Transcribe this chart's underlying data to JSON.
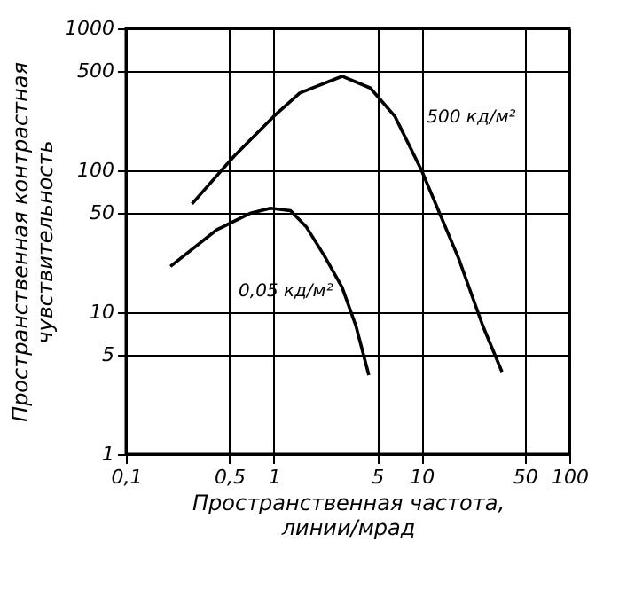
{
  "chart_data": {
    "type": "line",
    "xlabel": "Пространственная частота,\nлинии/мрад",
    "ylabel": "Пространственная контрастная\nчувствительность",
    "log": "xy",
    "grid": true,
    "marker": "none",
    "line_style": "solid",
    "xlim": [
      0.1,
      100
    ],
    "xticks": [
      {
        "value": 0.1,
        "label": "0,1"
      },
      {
        "value": 0.5,
        "label": "0,5"
      },
      1,
      5,
      10,
      50,
      100
    ],
    "ylim": [
      1,
      1000
    ],
    "yticks": [
      1,
      5,
      10,
      50,
      100,
      500,
      1000
    ],
    "series": [
      {
        "name": "500 кд/м²",
        "color": "#000000",
        "x": [
          0.28,
          0.54,
          1,
          1.5,
          2.9,
          4.5,
          6.6,
          10,
          17.8,
          26,
          35
        ],
        "values": [
          58,
          126,
          240,
          350,
          460,
          380,
          240,
          100,
          24,
          8,
          3.8
        ]
      },
      {
        "name": "0,05 кд/м²",
        "color": "#000000",
        "x": [
          0.2,
          0.41,
          0.7,
          0.95,
          1.3,
          1.66,
          2.2,
          2.9,
          3.6,
          4.4
        ],
        "values": [
          21,
          38,
          50,
          54,
          52,
          40,
          25,
          15,
          8,
          3.6
        ]
      }
    ]
  }
}
